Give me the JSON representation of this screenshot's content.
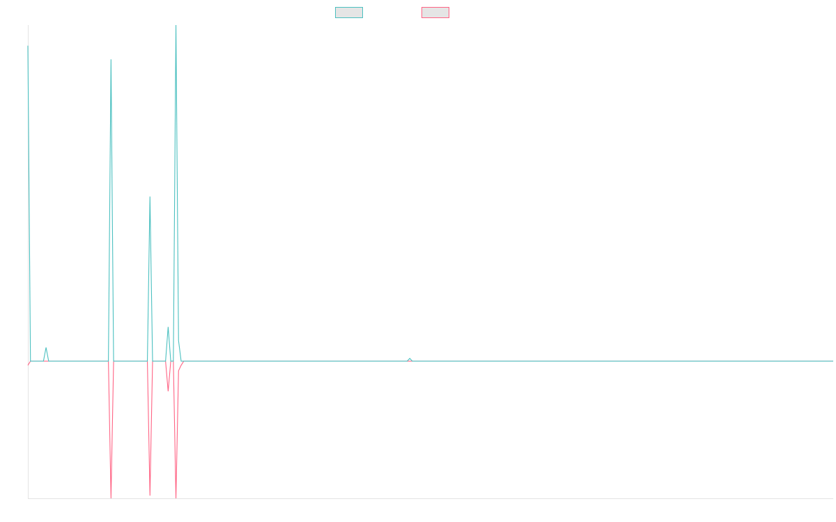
{
  "chart_data": {
    "type": "line",
    "title": "",
    "xlabel": "",
    "ylabel": "",
    "grid": false,
    "legend_position": "top-center",
    "x_count": 311,
    "ylim": [
      -1,
      2.45
    ],
    "series": [
      {
        "name": "",
        "color": "#4bc0c0",
        "fill": "#e5e5e5",
        "values": {
          "0": 2.3,
          "1": 0,
          "6": 0,
          "7": 0.1,
          "8": 0,
          "31": 0,
          "32": 2.2,
          "33": 0,
          "46": 0,
          "47": 1.2,
          "48": 0,
          "53": 0,
          "54": 0.25,
          "55": 0,
          "56": 0,
          "57": 2.45,
          "58": 0.15,
          "59": 0,
          "146": 0,
          "147": 0.02,
          "148": 0
        }
      },
      {
        "name": "",
        "color": "#ff6384",
        "fill": "#e5e5e5",
        "values": {
          "0": -0.03,
          "1": 0,
          "31": 0,
          "32": -1.0,
          "33": 0,
          "46": 0,
          "47": -0.98,
          "48": 0,
          "53": 0,
          "54": -0.22,
          "55": 0,
          "56": 0,
          "57": -1.0,
          "58": -0.07,
          "59": -0.03,
          "60": 0
        }
      }
    ]
  }
}
